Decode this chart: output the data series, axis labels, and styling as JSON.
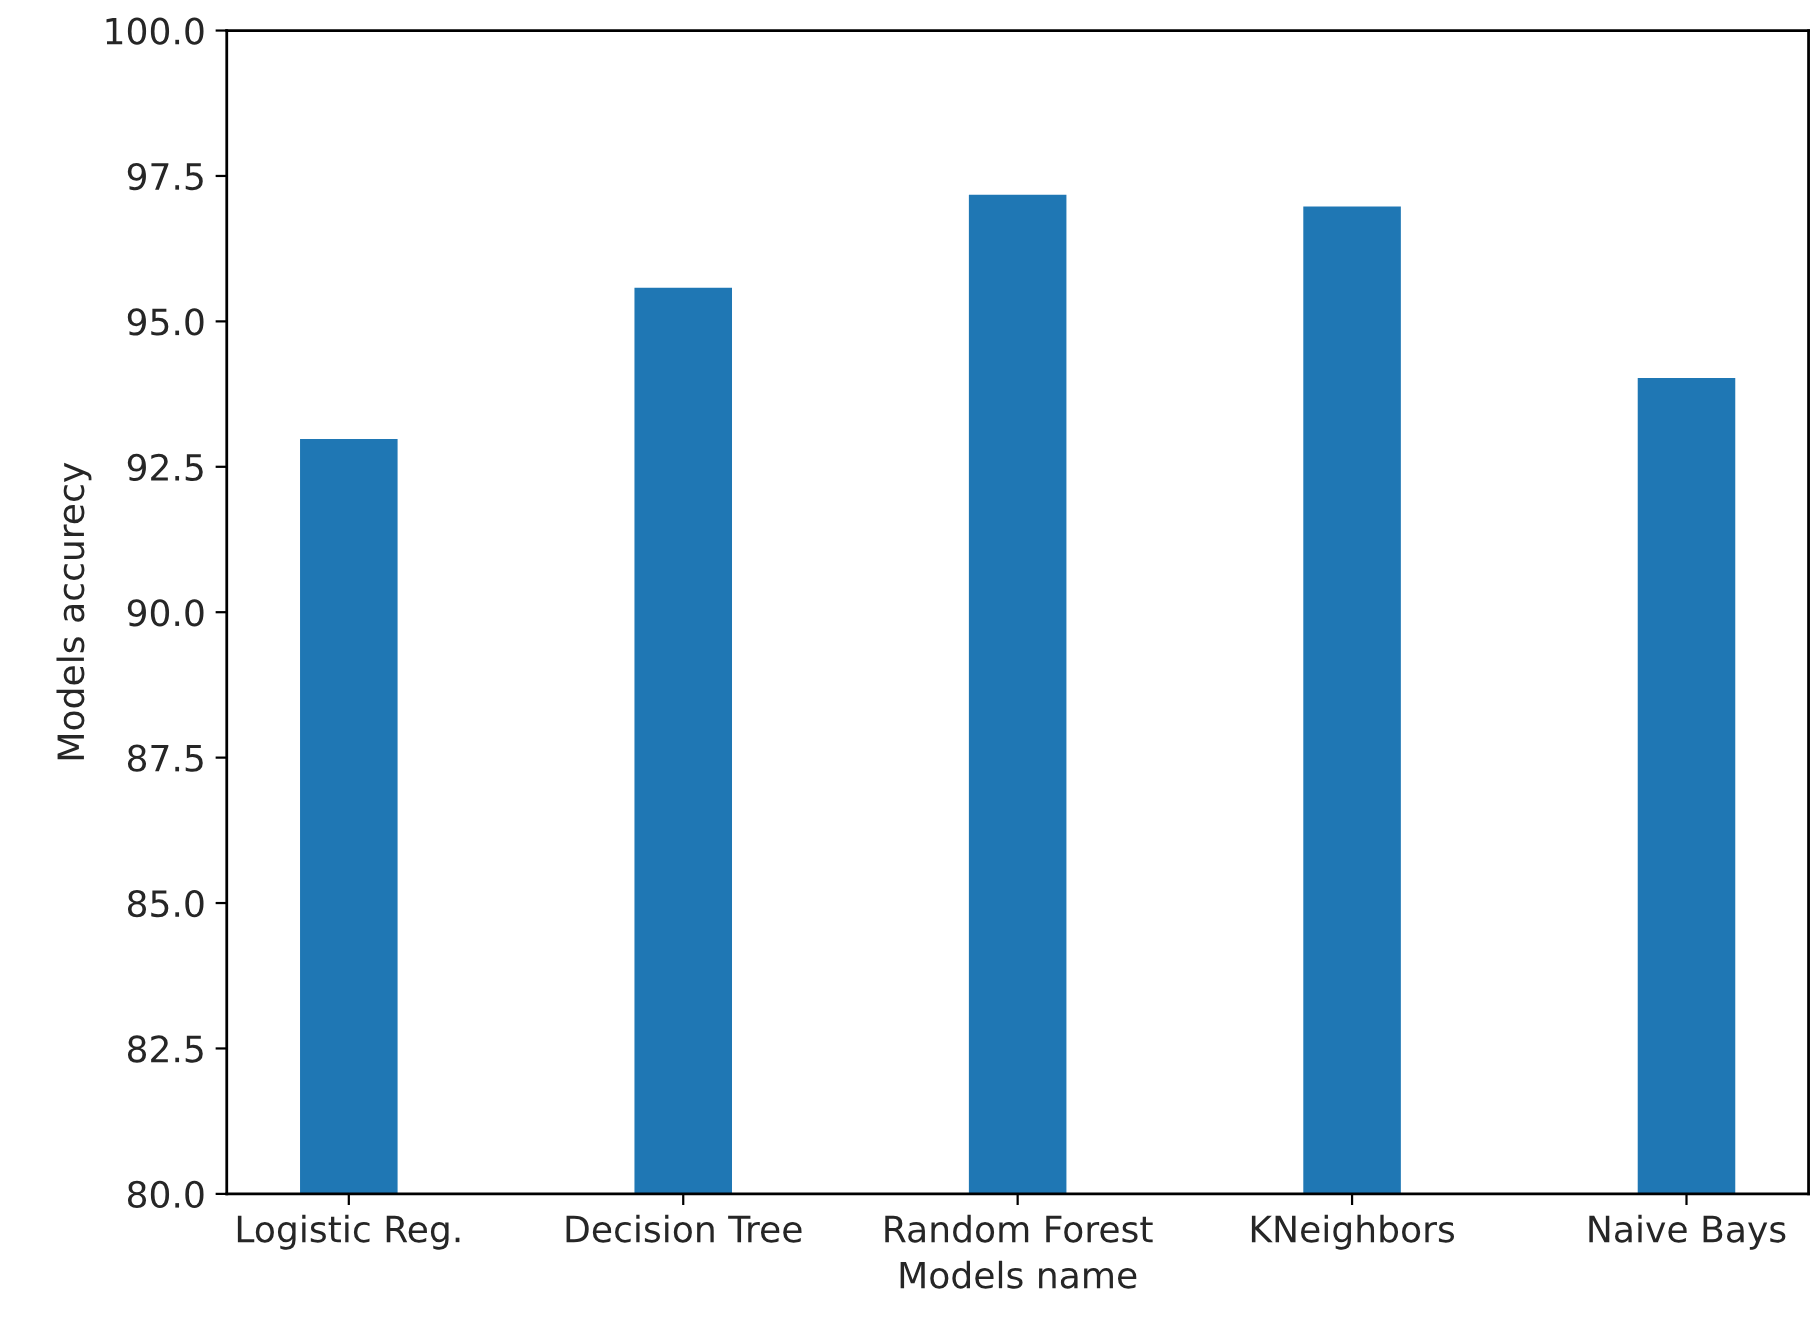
{
  "chart_data": {
    "type": "bar",
    "xlabel": "Models name",
    "ylabel": "Models accurecy",
    "categories": [
      "Logistic Reg.",
      "Decision Tree",
      "Random Forest",
      "KNeighbors",
      "Naive Bays"
    ],
    "values": [
      93.0,
      95.6,
      97.2,
      97.0,
      94.05
    ],
    "color": "#1f77b4",
    "ylim": [
      80,
      100
    ],
    "yticks": [
      {
        "value": 80,
        "label": "80.0"
      },
      {
        "value": 82.5,
        "label": "82.5"
      },
      {
        "value": 85,
        "label": "85.0"
      },
      {
        "value": 87.5,
        "label": "87.5"
      },
      {
        "value": 90,
        "label": "90.0"
      },
      {
        "value": 92.5,
        "label": "92.5"
      },
      {
        "value": 95,
        "label": "95.0"
      },
      {
        "value": 97.5,
        "label": "97.5"
      },
      {
        "value": 100,
        "label": "100.0"
      }
    ],
    "grid": false,
    "legend": false
  }
}
